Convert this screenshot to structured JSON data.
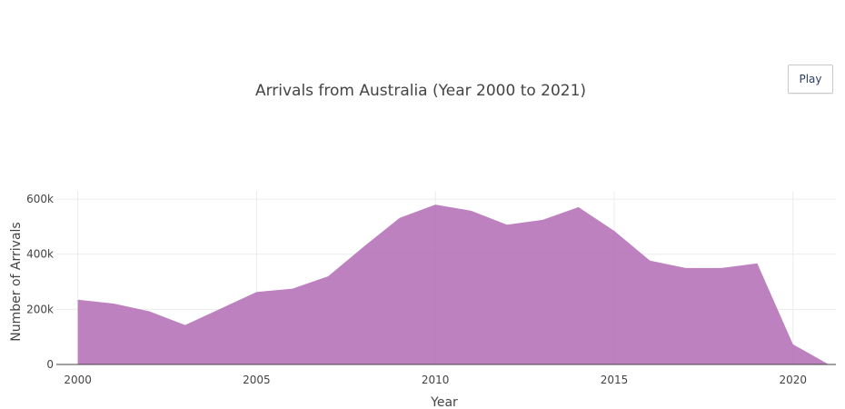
{
  "controls": {
    "play_label": "Play"
  },
  "chart_data": {
    "type": "area",
    "title": "Arrivals from Australia (Year 2000 to 2021)",
    "xlabel": "Year",
    "ylabel": "Number of Arrivals",
    "x": [
      2000,
      2001,
      2002,
      2003,
      2004,
      2005,
      2006,
      2007,
      2008,
      2009,
      2010,
      2011,
      2012,
      2013,
      2014,
      2015,
      2016,
      2017,
      2018,
      2019,
      2020,
      2021
    ],
    "series": [
      {
        "values": [
          235000,
          221000,
          193000,
          143000,
          203000,
          263000,
          275000,
          320000,
          428000,
          532000,
          580000,
          558000,
          507000,
          525000,
          571000,
          485000,
          377000,
          350000,
          350000,
          367000,
          73000,
          0
        ],
        "color": "#b36bb5"
      }
    ],
    "xlim": [
      1999.4,
      2021.2
    ],
    "ylim": [
      0,
      630000
    ],
    "xticks": [
      2000,
      2005,
      2010,
      2015,
      2020
    ],
    "xtick_labels": [
      "2000",
      "2005",
      "2010",
      "2015",
      "2020"
    ],
    "yticks": [
      0,
      200000,
      400000,
      600000
    ],
    "ytick_labels": [
      "0",
      "200k",
      "400k",
      "600k"
    ],
    "grid": true,
    "legend": "none"
  }
}
